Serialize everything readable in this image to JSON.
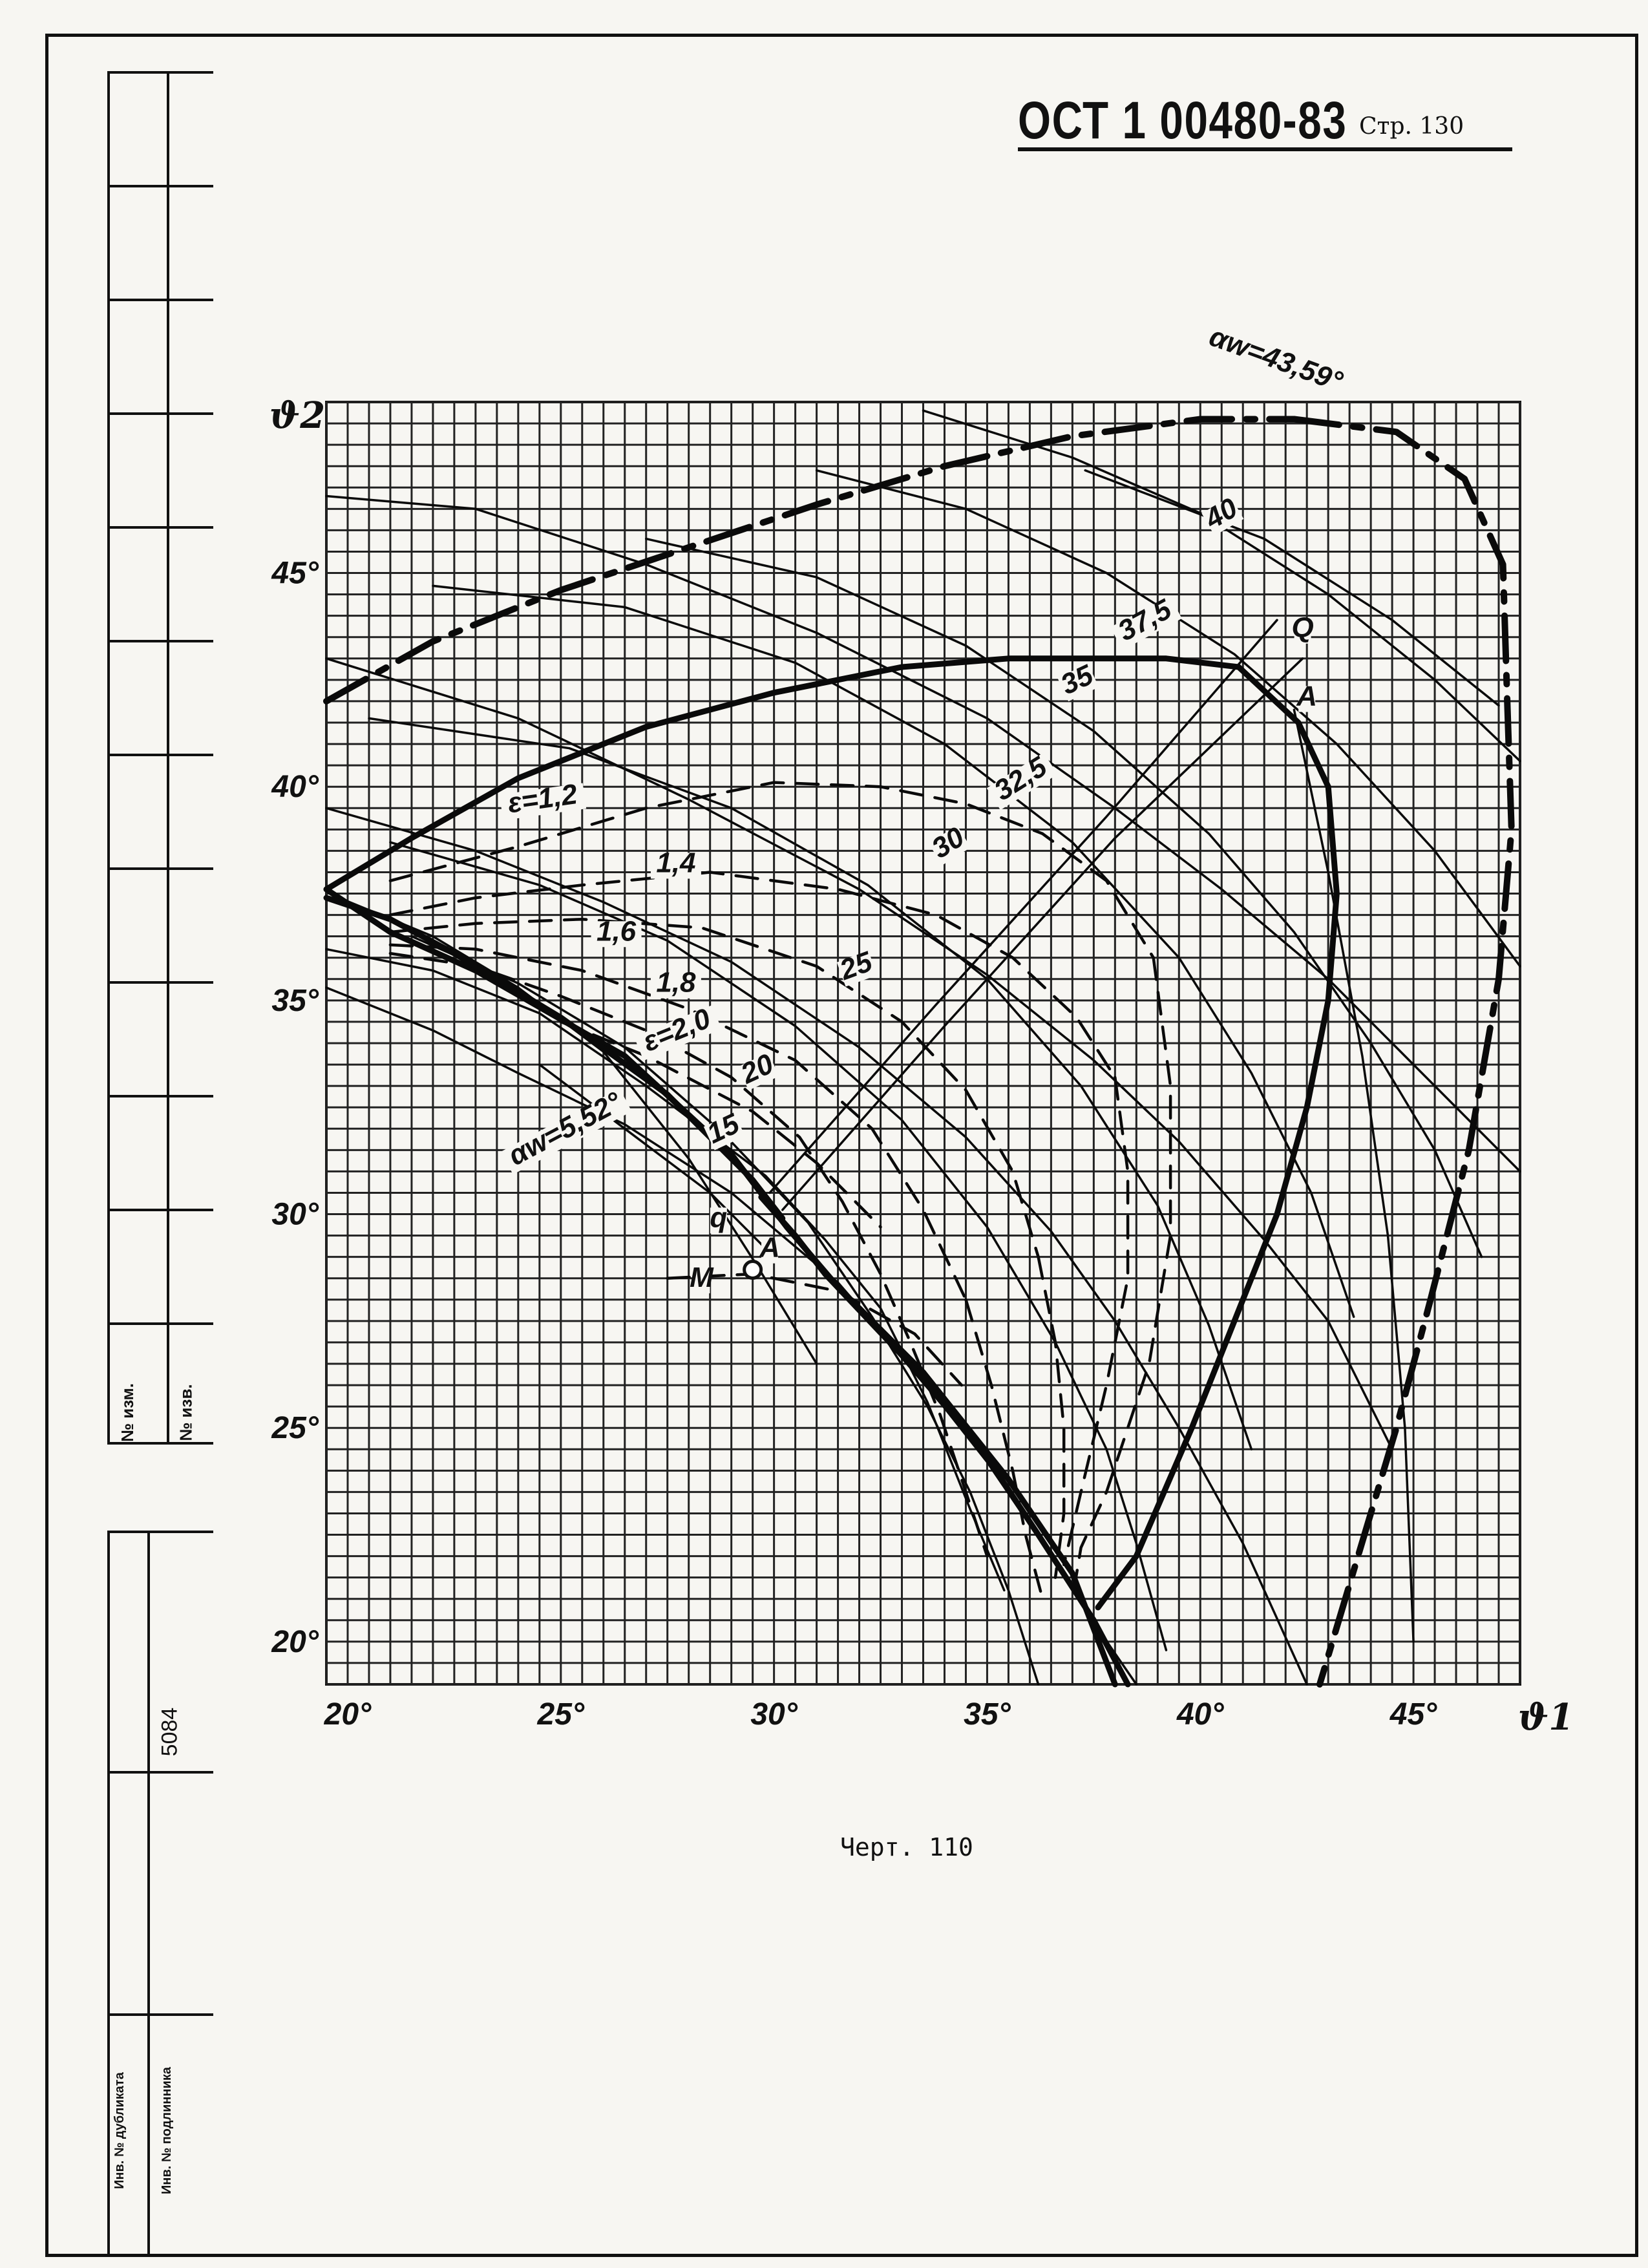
{
  "header": {
    "doc_code": "ОСТ 1 00480-83",
    "page_label": "Стр. 130"
  },
  "caption": "Черт. 110",
  "side_strip": {
    "cell_a": "№ изм.",
    "cell_b": "№ изв.",
    "archive_number": "5084",
    "dup_label": "Инв. № дубликата",
    "orig_label": "Инв. № подлинника"
  },
  "chart_data": {
    "type": "line",
    "title": "",
    "xlabel": "ϑ1",
    "ylabel": "ϑ2",
    "xlim": [
      19.5,
      47.5
    ],
    "ylim": [
      19,
      49
    ],
    "grid": true,
    "x_ticks": [
      {
        "v": 20,
        "label": "20°"
      },
      {
        "v": 25,
        "label": "25°"
      },
      {
        "v": 30,
        "label": "30°"
      },
      {
        "v": 35,
        "label": "35°"
      },
      {
        "v": 40,
        "label": "40°"
      },
      {
        "v": 45,
        "label": "45°"
      }
    ],
    "y_ticks": [
      {
        "v": 20,
        "label": "20°"
      },
      {
        "v": 25,
        "label": "25°"
      },
      {
        "v": 30,
        "label": "30°"
      },
      {
        "v": 35,
        "label": "35°"
      },
      {
        "v": 40,
        "label": "40°"
      },
      {
        "v": 45,
        "label": "45°"
      }
    ],
    "series": [
      {
        "style": "thin",
        "x": [
          19.5,
          23,
          27,
          31,
          35,
          38,
          40.5,
          43,
          45,
          47.5
        ],
        "y": [
          46.8,
          46.5,
          45.2,
          43.6,
          41.6,
          39.5,
          37.6,
          35.5,
          33.5,
          31
        ]
      },
      {
        "style": "thin",
        "x": [
          19.5,
          24,
          28,
          32,
          35,
          37.5,
          39.5,
          41.5,
          43,
          44.5
        ],
        "y": [
          43,
          41.6,
          39.7,
          37.6,
          35.6,
          33.6,
          31.7,
          29.4,
          27.5,
          24.5
        ]
      },
      {
        "style": "thin",
        "x": [
          19.5,
          23,
          26,
          29,
          32,
          34.5,
          36.5,
          38,
          39.5,
          41,
          42.5
        ],
        "y": [
          39.5,
          38.5,
          37.3,
          35.9,
          33.9,
          31.8,
          29.6,
          27.5,
          25,
          22.3,
          19
        ]
      },
      {
        "style": "thin",
        "x": [
          19.5,
          22,
          24,
          26.5,
          29,
          31.5,
          33.5,
          35,
          36.5,
          37.6,
          38.5
        ],
        "y": [
          35.3,
          34.3,
          33.3,
          32.1,
          30.5,
          28.4,
          26.1,
          24.2,
          22,
          20.3,
          19
        ]
      },
      {
        "style": "thin",
        "x": [
          21.5,
          24,
          26.5,
          28.8,
          30.8,
          32.3,
          33.6,
          34.6,
          35.5,
          36.2
        ],
        "y": [
          36.5,
          35.4,
          33.9,
          31.9,
          29.8,
          27.6,
          25.5,
          23.5,
          21.2,
          19
        ]
      },
      {
        "style": "thin",
        "x": [
          21,
          24.5,
          27.5,
          30.5,
          33,
          35,
          36.6,
          37.8,
          38.5,
          39.2
        ],
        "y": [
          38.7,
          37.7,
          36.4,
          34.4,
          32.2,
          29.7,
          27,
          24.5,
          22.3,
          19.8
        ]
      },
      {
        "style": "thin",
        "x": [
          20.5,
          25.2,
          29,
          32.2,
          35,
          37.2,
          39,
          40.2,
          41.2
        ],
        "y": [
          41.6,
          40.9,
          39.5,
          37.7,
          35.5,
          33,
          30.2,
          27.4,
          24.5
        ]
      },
      {
        "style": "thin",
        "x": [
          22,
          26.5,
          30.5,
          34,
          37,
          39.5,
          41.2,
          42.6,
          43.6
        ],
        "y": [
          44.7,
          44.2,
          42.9,
          41,
          38.7,
          36,
          33.3,
          30.5,
          27.6
        ]
      },
      {
        "style": "thin",
        "x": [
          27,
          31,
          34.5,
          37.5,
          40.2,
          42.2,
          44,
          45.5,
          46.6
        ],
        "y": [
          45.8,
          44.9,
          43.3,
          41.3,
          38.9,
          36.6,
          34,
          31.5,
          29
        ]
      },
      {
        "style": "thin",
        "x": [
          31,
          34.5,
          37.8,
          40.8,
          43.2,
          45.5,
          47.5
        ],
        "y": [
          47.4,
          46.5,
          45,
          43.1,
          41,
          38.5,
          35.8
        ]
      },
      {
        "style": "thin",
        "x": [
          33.5,
          37,
          40,
          43,
          45.5,
          47.5
        ],
        "y": [
          48.8,
          47.7,
          46.4,
          44.5,
          42.5,
          40.6
        ]
      },
      {
        "style": "thin",
        "x": [
          37.3,
          41.5,
          44.5,
          47
        ],
        "y": [
          47.4,
          45.8,
          43.9,
          41.9
        ]
      },
      {
        "style": "thin",
        "x": [
          19.5,
          22,
          24.5,
          27,
          29.8,
          31.2,
          32.5,
          33.6,
          34.6,
          35.4
        ],
        "y": [
          36.2,
          35.7,
          34.7,
          33,
          30.9,
          29.4,
          27.8,
          25.6,
          23.1,
          21.2
        ]
      },
      {
        "style": "thin",
        "x": [
          19.8,
          22,
          24,
          26,
          28,
          29.6,
          31
        ],
        "y": [
          37.4,
          36.5,
          35.3,
          33.8,
          31.3,
          28.8,
          26.5
        ]
      },
      {
        "style": "thin",
        "x": [
          24.5,
          26.5,
          28.5,
          30
        ],
        "y": [
          33.5,
          32,
          30.5,
          29
        ]
      },
      {
        "style": "thin",
        "x": [
          42.2,
          43,
          43.8,
          44.4,
          44.8,
          45
        ],
        "y": [
          41.8,
          38,
          33.7,
          29.5,
          25,
          20
        ]
      },
      {
        "style": "thin",
        "x": [
          30.2,
          34,
          38,
          42.4
        ],
        "y": [
          30.1,
          34.4,
          38.8,
          43
        ]
      },
      {
        "style": "thin",
        "x": [
          29.9,
          33.8,
          37.8,
          41.8
        ],
        "y": [
          30.5,
          34.9,
          39.3,
          43.9
        ]
      },
      {
        "style": "thick",
        "x": [
          19.5,
          21,
          23,
          26.5,
          29,
          30.3,
          31.5,
          33.5,
          35.5,
          37,
          38
        ],
        "y": [
          37.6,
          36.6,
          35.7,
          33.7,
          31.4,
          29.7,
          28.3,
          26.3,
          23.8,
          21.6,
          19
        ]
      },
      {
        "style": "thick",
        "x": [
          19.5,
          21,
          22.5,
          25,
          27.5,
          29.5,
          30.2
        ],
        "y": [
          37.4,
          36.9,
          36.1,
          34.6,
          32.8,
          30.8,
          29.9
        ]
      },
      {
        "style": "thick",
        "x": [
          29.7,
          30.5,
          31.2,
          33,
          34.8,
          36.2,
          37.5,
          38.3
        ],
        "y": [
          30.4,
          29.5,
          28.6,
          26.7,
          24.6,
          22.5,
          20.5,
          19
        ]
      },
      {
        "style": "thick",
        "x": [
          19.5,
          21.5,
          24,
          27,
          30,
          33,
          35.5,
          37.5,
          39.2,
          40.9,
          42.3,
          43
        ],
        "y": [
          37.6,
          38.8,
          40.2,
          41.4,
          42.2,
          42.8,
          43,
          43,
          43,
          42.8,
          41.5,
          40
        ]
      },
      {
        "style": "thick",
        "x": [
          43,
          43.2,
          43,
          42.5,
          41.8,
          40.8,
          39.8,
          38.5,
          37.6
        ],
        "y": [
          40,
          37.5,
          35,
          32.5,
          30,
          27.5,
          25,
          22,
          20.8
        ]
      },
      {
        "style": "thick-dash",
        "x": [
          19.5,
          22,
          25,
          28,
          31,
          34,
          37,
          40,
          42.2
        ],
        "y": [
          42,
          43.4,
          44.6,
          45.6,
          46.6,
          47.5,
          48.2,
          48.6,
          48.6
        ]
      },
      {
        "style": "thick-dash",
        "x": [
          42.2,
          44.6,
          46.2,
          47.1,
          47.2,
          47.3,
          47.0,
          46.3,
          45.4,
          44.6,
          43.7,
          42.8
        ],
        "y": [
          48.6,
          48.3,
          47.2,
          45.2,
          42,
          39,
          35.5,
          31.5,
          28,
          25,
          22,
          19
        ]
      },
      {
        "style": "dash",
        "x": [
          21,
          24,
          27,
          30,
          32.5,
          34.5,
          36.3,
          37.8,
          38.9
        ],
        "y": [
          37.8,
          38.6,
          39.5,
          40.1,
          40,
          39.6,
          38.9,
          37.8,
          36
        ]
      },
      {
        "style": "dash",
        "x": [
          38.9,
          39.3,
          39.3,
          38.8,
          37.8,
          37.2,
          37
        ],
        "y": [
          36,
          33,
          29.5,
          26.5,
          23.5,
          22.2,
          21
        ]
      },
      {
        "style": "dash",
        "x": [
          21,
          23,
          25.5,
          28.5,
          31.5,
          33.8,
          35.6,
          37.1,
          38
        ],
        "y": [
          37,
          37.4,
          37.7,
          38,
          37.6,
          37,
          36,
          34.6,
          33.2
        ]
      },
      {
        "style": "dash",
        "x": [
          38,
          38.3,
          38.3,
          37.8,
          37.2,
          36.8
        ],
        "y": [
          33.2,
          31,
          28.5,
          26,
          23.5,
          21.8
        ]
      },
      {
        "style": "dash",
        "x": [
          21,
          23,
          25.5,
          28.3,
          31,
          33,
          34.5,
          35.6,
          36.2
        ],
        "y": [
          36.6,
          36.8,
          36.9,
          36.7,
          35.8,
          34.5,
          32.9,
          31,
          29
        ]
      },
      {
        "style": "dash",
        "x": [
          36.2,
          36.6,
          36.8,
          36.8,
          36.6
        ],
        "y": [
          29,
          27,
          25,
          23,
          21.5
        ]
      },
      {
        "style": "dash",
        "x": [
          21,
          23,
          25.5,
          28,
          30.5,
          32.3,
          33.5,
          34.5
        ],
        "y": [
          36.3,
          36.2,
          35.7,
          34.8,
          33.6,
          32,
          30.1,
          28
        ]
      },
      {
        "style": "dash",
        "x": [
          34.5,
          35.1,
          35.6,
          35.9,
          36.3
        ],
        "y": [
          28,
          26,
          24,
          22.5,
          21
        ]
      },
      {
        "style": "dash",
        "x": [
          21,
          23,
          25,
          27,
          29,
          30.6,
          31.6,
          32.5,
          33.2,
          33.9,
          34.5,
          35
        ],
        "y": [
          36.1,
          35.8,
          35.1,
          34.3,
          33.2,
          31.8,
          30.3,
          28.6,
          27,
          25.3,
          23.5,
          22
        ]
      },
      {
        "style": "dash",
        "x": [
          25,
          27,
          29.5,
          31,
          32.5
        ],
        "y": [
          34.5,
          33.7,
          32.4,
          31.2,
          29.7
        ]
      },
      {
        "style": "dash",
        "x": [
          27.5,
          29.5,
          31.5,
          33.3,
          34.4
        ],
        "y": [
          28.5,
          28.6,
          28.2,
          27.2,
          26
        ]
      }
    ],
    "labels": [
      {
        "text": "40",
        "x": 40.6,
        "y": 46.2,
        "angle": -30
      },
      {
        "text": "37,5",
        "x": 38.8,
        "y": 43.7,
        "angle": -28
      },
      {
        "text": "35",
        "x": 37.2,
        "y": 42.3,
        "angle": -25
      },
      {
        "text": "32,5",
        "x": 35.9,
        "y": 40,
        "angle": -32
      },
      {
        "text": "30",
        "x": 34.2,
        "y": 38.5,
        "angle": -32
      },
      {
        "text": "25",
        "x": 32,
        "y": 35.6,
        "angle": -20
      },
      {
        "text": "20",
        "x": 29.7,
        "y": 33.2,
        "angle": -25
      },
      {
        "text": "15",
        "x": 28.9,
        "y": 31.8,
        "angle": -25
      },
      {
        "text": "ε=1,2",
        "x": 24.6,
        "y": 39.5,
        "angle": -8
      },
      {
        "text": "1,4",
        "x": 27.7,
        "y": 38
      },
      {
        "text": "1,6",
        "x": 26.3,
        "y": 36.4
      },
      {
        "text": "1,8",
        "x": 27.7,
        "y": 35.2
      },
      {
        "text": "ε=2,0",
        "x": 27.8,
        "y": 34.1,
        "angle": -22
      },
      {
        "text": "αw=5,52°",
        "x": 25.2,
        "y": 31.8,
        "angle": -28
      },
      {
        "text": "αw=43,59°",
        "x": 41.7,
        "y": 49.8,
        "angle": 20
      },
      {
        "text": "Q",
        "x": 42.4,
        "y": 43.5
      },
      {
        "text": "A",
        "x": 42.5,
        "y": 41.9
      },
      {
        "text": "q",
        "x": 28.7,
        "y": 29.7
      },
      {
        "text": "A",
        "x": 29.9,
        "y": 29
      },
      {
        "text": "M",
        "x": 28.3,
        "y": 28.3
      }
    ],
    "points": [
      {
        "name": "M",
        "x": 29.5,
        "y": 28.7
      }
    ]
  }
}
